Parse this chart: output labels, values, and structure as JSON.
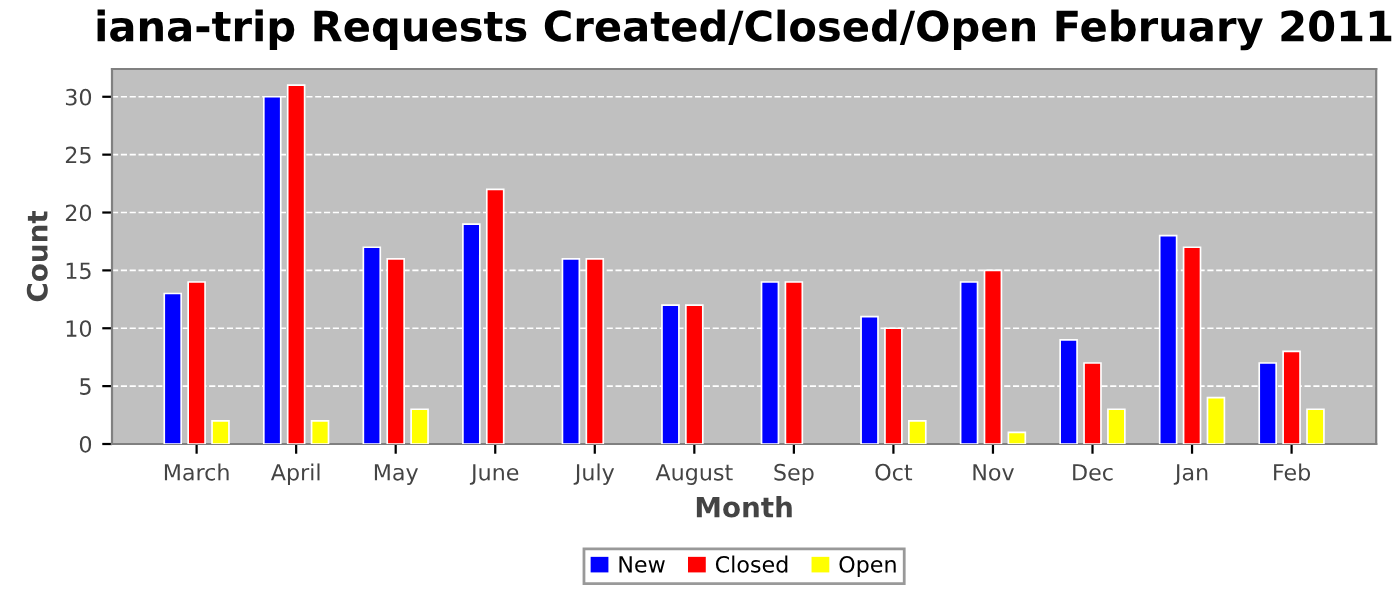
{
  "chart_data": {
    "type": "bar",
    "title": "iana-trip Requests Created/Closed/Open February 2011",
    "xlabel": "Month",
    "ylabel": "Count",
    "categories": [
      "March",
      "April",
      "May",
      "June",
      "July",
      "August",
      "Sep",
      "Oct",
      "Nov",
      "Dec",
      "Jan",
      "Feb"
    ],
    "series": [
      {
        "name": "New",
        "color": "#0000ff",
        "values": [
          13,
          30,
          17,
          19,
          16,
          12,
          14,
          11,
          14,
          9,
          18,
          7
        ]
      },
      {
        "name": "Closed",
        "color": "#ff0000",
        "values": [
          14,
          31,
          16,
          22,
          16,
          12,
          14,
          10,
          15,
          7,
          17,
          8
        ]
      },
      {
        "name": "Open",
        "color": "#ffff00",
        "values": [
          2,
          2,
          3,
          null,
          null,
          null,
          null,
          2,
          1,
          3,
          4,
          3
        ]
      }
    ],
    "ylim": [
      0,
      32.4
    ],
    "yticks": [
      0,
      5,
      10,
      15,
      20,
      25,
      30
    ],
    "grid": "y",
    "legend": "bottom"
  }
}
